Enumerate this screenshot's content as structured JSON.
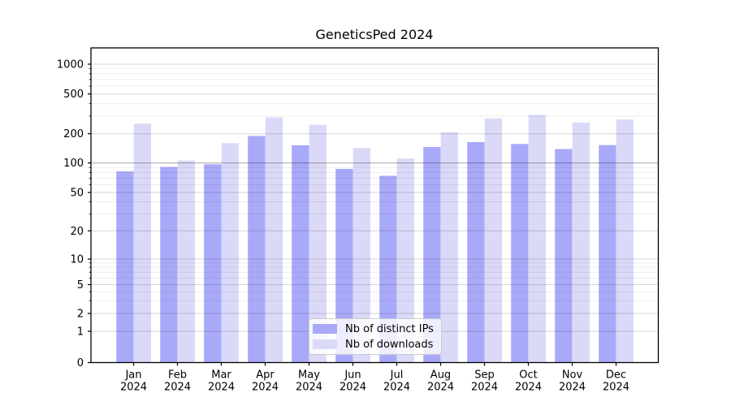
{
  "title": "GeneticsPed 2024",
  "chart_data": {
    "type": "bar",
    "categories": [
      "Jan",
      "Feb",
      "Mar",
      "Apr",
      "May",
      "Jun",
      "Jul",
      "Aug",
      "Sep",
      "Oct",
      "Nov",
      "Dec"
    ],
    "category_year": "2024",
    "series": [
      {
        "name": "Nb of distinct IPs",
        "color": "#a9a9f9",
        "values": [
          82,
          91,
          97,
          190,
          152,
          87,
          74,
          146,
          164,
          157,
          139,
          153
        ]
      },
      {
        "name": "Nb of downloads",
        "color": "#dadaf8",
        "values": [
          252,
          106,
          160,
          292,
          246,
          143,
          111,
          207,
          285,
          308,
          259,
          278
        ]
      }
    ],
    "title": "GeneticsPed 2024",
    "xlabel": "",
    "ylabel": "",
    "yscale": "symlog",
    "yticks": [
      0,
      1,
      2,
      5,
      10,
      20,
      50,
      100,
      200,
      500,
      1000
    ],
    "ylim": [
      0,
      1500
    ],
    "grid": true,
    "legend_position": "lower center"
  }
}
